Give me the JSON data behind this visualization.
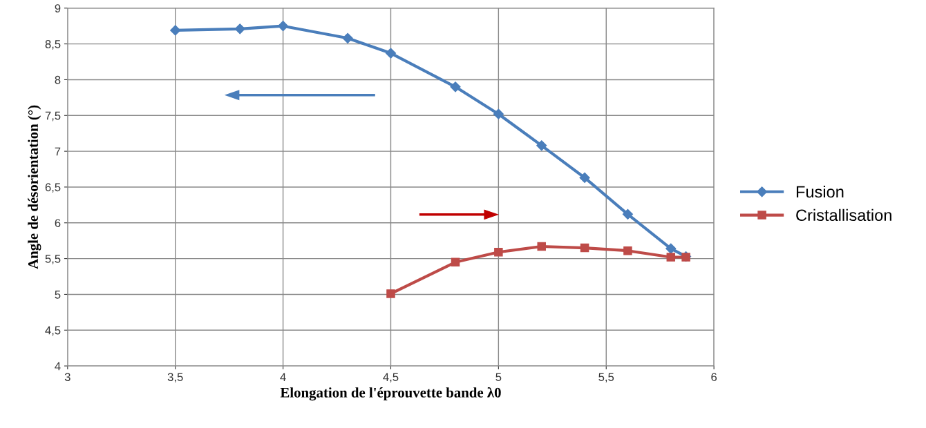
{
  "chart_data": {
    "type": "line",
    "xlabel": "Elongation de l'éprouvette bande λ0",
    "ylabel": "Angle de désorientation (°)",
    "xlim": [
      3,
      6
    ],
    "xticks": [
      3,
      {
        "value": 3.5,
        "label": "3,5"
      },
      4,
      {
        "value": 4.5,
        "label": "4,5"
      },
      5,
      {
        "value": 5.5,
        "label": "5,5"
      },
      6
    ],
    "ylim": [
      4,
      9
    ],
    "yticks": [
      4,
      {
        "value": 4.5,
        "label": "4,5"
      },
      5,
      {
        "value": 5.5,
        "label": "5,5"
      },
      6,
      {
        "value": 6.5,
        "label": "6,5"
      },
      7,
      {
        "value": 7.5,
        "label": "7,5"
      },
      8,
      {
        "value": 8.5,
        "label": "8,5"
      },
      9
    ],
    "grid": true,
    "legend": "right",
    "line_style": "solid",
    "series": [
      {
        "name": "Fusion",
        "color": "#4a7ebb",
        "marker": "diamond",
        "x": [
          3.5,
          3.8,
          4.0,
          4.3,
          4.5,
          4.8,
          5.0,
          5.2,
          5.4,
          5.6,
          5.8,
          5.87
        ],
        "values": [
          8.69,
          8.71,
          8.75,
          8.58,
          8.37,
          7.9,
          7.52,
          7.08,
          6.63,
          6.12,
          5.64,
          5.53
        ]
      },
      {
        "name": "Cristallisation",
        "color": "#be4b48",
        "marker": "square",
        "x": [
          4.5,
          4.8,
          5.0,
          5.2,
          5.4,
          5.6,
          5.8,
          5.87
        ],
        "values": [
          5.01,
          5.45,
          5.59,
          5.67,
          5.65,
          5.61,
          5.52,
          5.52
        ]
      }
    ]
  }
}
